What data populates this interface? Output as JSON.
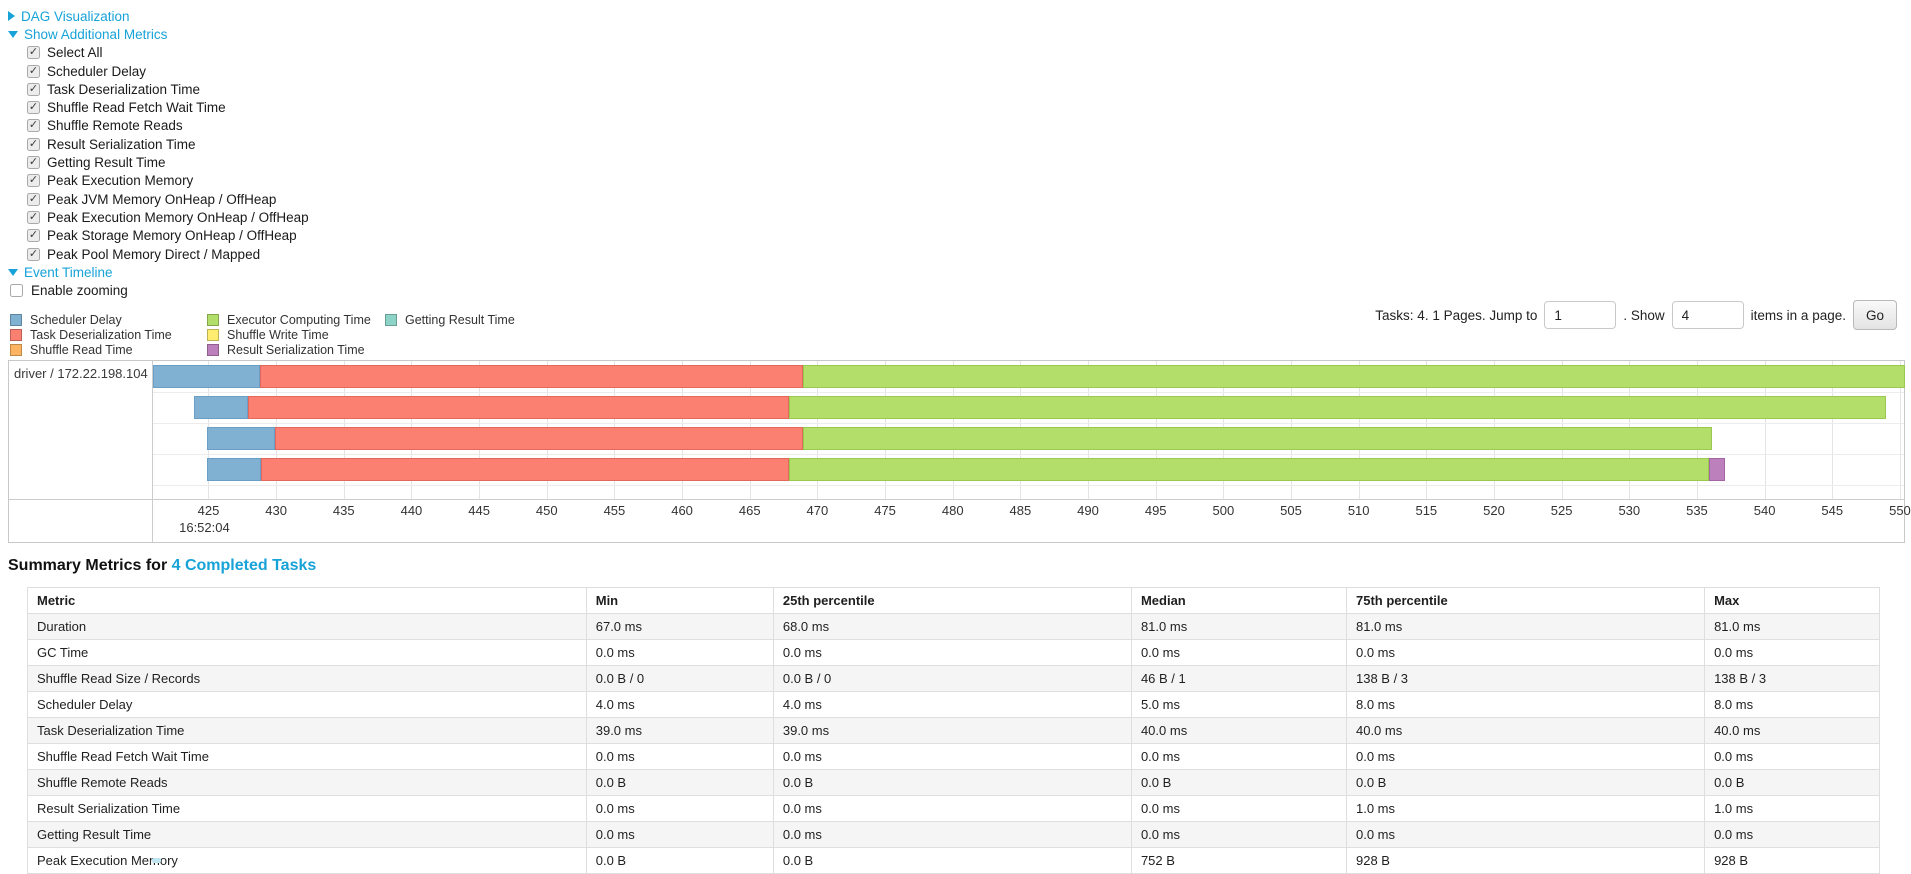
{
  "colors": {
    "link": "#17a2d8",
    "phases": {
      "scheduler_delay": {
        "fill": "#80B1D3",
        "stroke": "#6b9ec4"
      },
      "task_deserialization": {
        "fill": "#FB8072",
        "stroke": "#e2685c"
      },
      "shuffle_read": {
        "fill": "#FDB462",
        "stroke": "#e89c47"
      },
      "executor_computing": {
        "fill": "#B3DE69",
        "stroke": "#99c94f"
      },
      "shuffle_write": {
        "fill": "#FFED6F",
        "stroke": "#e0cd4e"
      },
      "result_serialization": {
        "fill": "#BC80BD",
        "stroke": "#a365a4"
      },
      "getting_result": {
        "fill": "#8DD3C7",
        "stroke": "#6fbfb0"
      }
    }
  },
  "sections": {
    "dag": {
      "label": "DAG Visualization",
      "expanded": false
    },
    "additional_metrics": {
      "label": "Show Additional Metrics",
      "expanded": true
    },
    "event_timeline": {
      "label": "Event Timeline",
      "expanded": true
    }
  },
  "metrics_checkboxes": [
    {
      "label": "Select All",
      "checked": true
    },
    {
      "label": "Scheduler Delay",
      "checked": true
    },
    {
      "label": "Task Deserialization Time",
      "checked": true
    },
    {
      "label": "Shuffle Read Fetch Wait Time",
      "checked": true
    },
    {
      "label": "Shuffle Remote Reads",
      "checked": true
    },
    {
      "label": "Result Serialization Time",
      "checked": true
    },
    {
      "label": "Getting Result Time",
      "checked": true
    },
    {
      "label": "Peak Execution Memory",
      "checked": true
    },
    {
      "label": "Peak JVM Memory OnHeap / OffHeap",
      "checked": true
    },
    {
      "label": "Peak Execution Memory OnHeap / OffHeap",
      "checked": true
    },
    {
      "label": "Peak Storage Memory OnHeap / OffHeap",
      "checked": true
    },
    {
      "label": "Peak Pool Memory Direct / Mapped",
      "checked": true
    }
  ],
  "enable_zooming": {
    "label": "Enable zooming",
    "checked": false
  },
  "legend": {
    "columns": [
      [
        {
          "label": "Scheduler Delay",
          "phase": "scheduler_delay"
        },
        {
          "label": "Task Deserialization Time",
          "phase": "task_deserialization"
        },
        {
          "label": "Shuffle Read Time",
          "phase": "shuffle_read"
        }
      ],
      [
        {
          "label": "Executor Computing Time",
          "phase": "executor_computing"
        },
        {
          "label": "Shuffle Write Time",
          "phase": "shuffle_write"
        },
        {
          "label": "Result Serialization Time",
          "phase": "result_serialization"
        }
      ],
      [
        {
          "label": "Getting Result Time",
          "phase": "getting_result"
        }
      ]
    ]
  },
  "pagination": {
    "prefix": "Tasks: 4. 1 Pages. Jump to",
    "jump_value": "1",
    "mid": ". Show",
    "show_value": "4",
    "suffix": "items in a page.",
    "go_label": "Go"
  },
  "timeline": {
    "group_label": "driver / 172.22.198.104",
    "axis": {
      "min": 420.9,
      "max": 550.3,
      "tick_start": 425,
      "tick_end": 550,
      "tick_step": 5,
      "time_label": "16:52:04",
      "time_label_tick": 425
    },
    "tasks": [
      {
        "segments": [
          [
            "scheduler_delay",
            420.9,
            428.8
          ],
          [
            "task_deserialization",
            428.8,
            468.9
          ],
          [
            "executor_computing",
            468.9,
            550.4
          ]
        ]
      },
      {
        "segments": [
          [
            "scheduler_delay",
            423.9,
            427.9
          ],
          [
            "task_deserialization",
            427.9,
            467.9
          ],
          [
            "executor_computing",
            467.9,
            549.0
          ]
        ]
      },
      {
        "segments": [
          [
            "scheduler_delay",
            424.9,
            429.9
          ],
          [
            "task_deserialization",
            429.9,
            468.9
          ],
          [
            "executor_computing",
            468.9,
            536.1
          ]
        ]
      },
      {
        "segments": [
          [
            "scheduler_delay",
            424.9,
            428.9
          ],
          [
            "task_deserialization",
            428.9,
            467.9
          ],
          [
            "executor_computing",
            467.9,
            535.9
          ],
          [
            "result_serialization",
            535.9,
            537.1
          ]
        ]
      }
    ]
  },
  "summary": {
    "title_prefix": "Summary Metrics for",
    "title_link": "4 Completed Tasks",
    "columns": [
      "Metric",
      "Min",
      "25th percentile",
      "Median",
      "75th percentile",
      "Max"
    ],
    "rows": [
      {
        "metric": "Duration",
        "values": [
          "67.0 ms",
          "68.0 ms",
          "81.0 ms",
          "81.0 ms",
          "81.0 ms"
        ]
      },
      {
        "metric": "GC Time",
        "values": [
          "0.0 ms",
          "0.0 ms",
          "0.0 ms",
          "0.0 ms",
          "0.0 ms"
        ]
      },
      {
        "metric": "Shuffle Read Size / Records",
        "values": [
          "0.0 B / 0",
          "0.0 B / 0",
          "46 B / 1",
          "138 B / 3",
          "138 B / 3"
        ]
      },
      {
        "metric": "Scheduler Delay",
        "values": [
          "4.0 ms",
          "4.0 ms",
          "5.0 ms",
          "8.0 ms",
          "8.0 ms"
        ]
      },
      {
        "metric": "Task Deserialization Time",
        "values": [
          "39.0 ms",
          "39.0 ms",
          "40.0 ms",
          "40.0 ms",
          "40.0 ms"
        ]
      },
      {
        "metric": "Shuffle Read Fetch Wait Time",
        "values": [
          "0.0 ms",
          "0.0 ms",
          "0.0 ms",
          "0.0 ms",
          "0.0 ms"
        ]
      },
      {
        "metric": "Shuffle Remote Reads",
        "values": [
          "0.0 B",
          "0.0 B",
          "0.0 B",
          "0.0 B",
          "0.0 B"
        ]
      },
      {
        "metric": "Result Serialization Time",
        "values": [
          "0.0 ms",
          "0.0 ms",
          "0.0 ms",
          "1.0 ms",
          "1.0 ms"
        ]
      },
      {
        "metric": "Getting Result Time",
        "values": [
          "0.0 ms",
          "0.0 ms",
          "0.0 ms",
          "0.0 ms",
          "0.0 ms"
        ]
      },
      {
        "metric": "Peak Execution Memory",
        "values": [
          "0.0 B",
          "0.0 B",
          "752 B",
          "928 B",
          "928 B"
        ]
      }
    ]
  }
}
